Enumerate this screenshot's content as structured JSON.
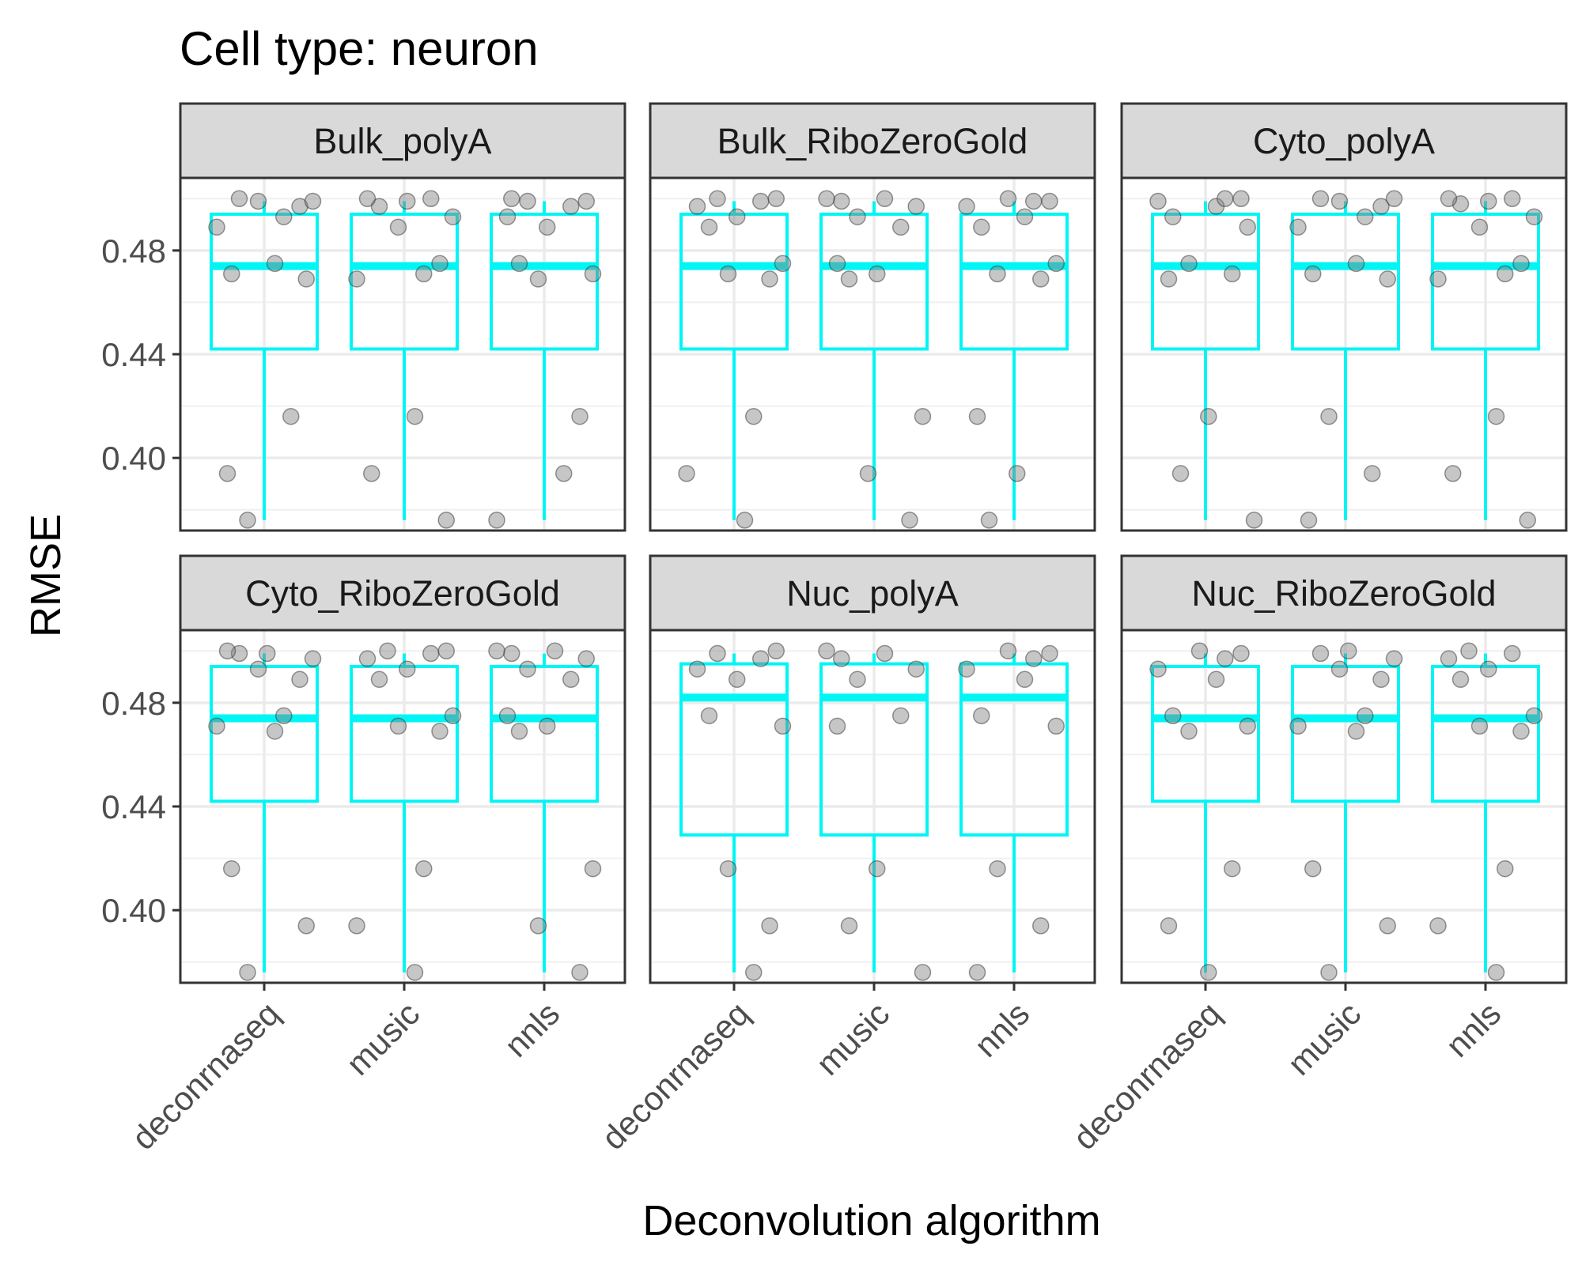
{
  "chart_data": {
    "type": "box",
    "title": "Cell type: neuron",
    "xlabel": "Deconvolution algorithm",
    "ylabel": "RMSE",
    "ylim": [
      0.372,
      0.508
    ],
    "y_ticks": [
      "0.40",
      "0.44",
      "0.48"
    ],
    "y_tick_values": [
      0.4,
      0.44,
      0.48
    ],
    "categories": [
      "deconrnaseq",
      "music",
      "nnls"
    ],
    "box_color": "#00f5f5",
    "point_color": "#808080",
    "panels": [
      {
        "name": "Bulk_polyA",
        "boxes": [
          {
            "category": "deconrnaseq",
            "q1": 0.442,
            "median": 0.474,
            "q3": 0.494,
            "whisker_low": 0.376,
            "whisker_high": 0.499
          },
          {
            "category": "music",
            "q1": 0.442,
            "median": 0.474,
            "q3": 0.494,
            "whisker_low": 0.376,
            "whisker_high": 0.499
          },
          {
            "category": "nnls",
            "q1": 0.442,
            "median": 0.474,
            "q3": 0.494,
            "whisker_low": 0.376,
            "whisker_high": 0.499
          }
        ],
        "points": [
          {
            "category": "deconrnaseq",
            "y": [
              0.394,
              0.416,
              0.376,
              0.469,
              0.471,
              0.475,
              0.489,
              0.493,
              0.497,
              0.499,
              0.499,
              0.5
            ]
          },
          {
            "category": "music",
            "y": [
              0.376,
              0.394,
              0.416,
              0.469,
              0.471,
              0.475,
              0.489,
              0.493,
              0.497,
              0.499,
              0.5,
              0.5
            ]
          },
          {
            "category": "nnls",
            "y": [
              0.376,
              0.394,
              0.416,
              0.469,
              0.471,
              0.475,
              0.489,
              0.493,
              0.497,
              0.499,
              0.499,
              0.5
            ]
          }
        ]
      },
      {
        "name": "Bulk_RiboZeroGold",
        "boxes": [
          {
            "category": "deconrnaseq",
            "q1": 0.442,
            "median": 0.474,
            "q3": 0.494,
            "whisker_low": 0.376,
            "whisker_high": 0.499
          },
          {
            "category": "music",
            "q1": 0.442,
            "median": 0.474,
            "q3": 0.494,
            "whisker_low": 0.376,
            "whisker_high": 0.499
          },
          {
            "category": "nnls",
            "q1": 0.442,
            "median": 0.474,
            "q3": 0.494,
            "whisker_low": 0.376,
            "whisker_high": 0.499
          }
        ],
        "points": [
          {
            "category": "deconrnaseq",
            "y": [
              0.376,
              0.394,
              0.416,
              0.469,
              0.471,
              0.475,
              0.489,
              0.493,
              0.497,
              0.499,
              0.5,
              0.5
            ]
          },
          {
            "category": "music",
            "y": [
              0.376,
              0.394,
              0.416,
              0.469,
              0.471,
              0.475,
              0.489,
              0.493,
              0.497,
              0.499,
              0.5,
              0.5
            ]
          },
          {
            "category": "nnls",
            "y": [
              0.376,
              0.394,
              0.416,
              0.469,
              0.471,
              0.475,
              0.489,
              0.493,
              0.497,
              0.499,
              0.499,
              0.5
            ]
          }
        ]
      },
      {
        "name": "Cyto_polyA",
        "boxes": [
          {
            "category": "deconrnaseq",
            "q1": 0.442,
            "median": 0.474,
            "q3": 0.494,
            "whisker_low": 0.376,
            "whisker_high": 0.499
          },
          {
            "category": "music",
            "q1": 0.442,
            "median": 0.474,
            "q3": 0.494,
            "whisker_low": 0.376,
            "whisker_high": 0.499
          },
          {
            "category": "nnls",
            "q1": 0.442,
            "median": 0.474,
            "q3": 0.494,
            "whisker_low": 0.376,
            "whisker_high": 0.499
          }
        ],
        "points": [
          {
            "category": "deconrnaseq",
            "y": [
              0.376,
              0.394,
              0.416,
              0.469,
              0.471,
              0.475,
              0.489,
              0.493,
              0.497,
              0.499,
              0.5,
              0.5
            ]
          },
          {
            "category": "music",
            "y": [
              0.376,
              0.394,
              0.416,
              0.469,
              0.471,
              0.475,
              0.489,
              0.493,
              0.497,
              0.499,
              0.5,
              0.5
            ]
          },
          {
            "category": "nnls",
            "y": [
              0.376,
              0.394,
              0.416,
              0.469,
              0.471,
              0.475,
              0.489,
              0.493,
              0.498,
              0.499,
              0.5,
              0.5
            ]
          }
        ]
      },
      {
        "name": "Cyto_RiboZeroGold",
        "boxes": [
          {
            "category": "deconrnaseq",
            "q1": 0.442,
            "median": 0.474,
            "q3": 0.494,
            "whisker_low": 0.376,
            "whisker_high": 0.499
          },
          {
            "category": "music",
            "q1": 0.442,
            "median": 0.474,
            "q3": 0.494,
            "whisker_low": 0.376,
            "whisker_high": 0.499
          },
          {
            "category": "nnls",
            "q1": 0.442,
            "median": 0.474,
            "q3": 0.494,
            "whisker_low": 0.376,
            "whisker_high": 0.499
          }
        ],
        "points": [
          {
            "category": "deconrnaseq",
            "y": [
              0.376,
              0.394,
              0.416,
              0.469,
              0.471,
              0.475,
              0.489,
              0.493,
              0.497,
              0.499,
              0.499,
              0.5
            ]
          },
          {
            "category": "music",
            "y": [
              0.376,
              0.394,
              0.416,
              0.469,
              0.471,
              0.475,
              0.489,
              0.493,
              0.497,
              0.499,
              0.5,
              0.5
            ]
          },
          {
            "category": "nnls",
            "y": [
              0.376,
              0.394,
              0.416,
              0.469,
              0.471,
              0.475,
              0.489,
              0.493,
              0.497,
              0.499,
              0.5,
              0.5
            ]
          }
        ]
      },
      {
        "name": "Nuc_polyA",
        "boxes": [
          {
            "category": "deconrnaseq",
            "q1": 0.429,
            "median": 0.482,
            "q3": 0.495,
            "whisker_low": 0.376,
            "whisker_high": 0.499
          },
          {
            "category": "music",
            "q1": 0.429,
            "median": 0.482,
            "q3": 0.495,
            "whisker_low": 0.376,
            "whisker_high": 0.499
          },
          {
            "category": "nnls",
            "q1": 0.429,
            "median": 0.482,
            "q3": 0.495,
            "whisker_low": 0.376,
            "whisker_high": 0.499
          }
        ],
        "points": [
          {
            "category": "deconrnaseq",
            "y": [
              0.376,
              0.394,
              0.416,
              0.471,
              0.475,
              0.489,
              0.493,
              0.497,
              0.499,
              0.5
            ]
          },
          {
            "category": "music",
            "y": [
              0.376,
              0.394,
              0.416,
              0.471,
              0.475,
              0.489,
              0.493,
              0.497,
              0.499,
              0.5
            ]
          },
          {
            "category": "nnls",
            "y": [
              0.376,
              0.394,
              0.416,
              0.471,
              0.475,
              0.489,
              0.493,
              0.497,
              0.499,
              0.5
            ]
          }
        ]
      },
      {
        "name": "Nuc_RiboZeroGold",
        "boxes": [
          {
            "category": "deconrnaseq",
            "q1": 0.442,
            "median": 0.474,
            "q3": 0.494,
            "whisker_low": 0.376,
            "whisker_high": 0.499
          },
          {
            "category": "music",
            "q1": 0.442,
            "median": 0.474,
            "q3": 0.494,
            "whisker_low": 0.376,
            "whisker_high": 0.499
          },
          {
            "category": "nnls",
            "q1": 0.442,
            "median": 0.474,
            "q3": 0.494,
            "whisker_low": 0.376,
            "whisker_high": 0.499
          }
        ],
        "points": [
          {
            "category": "deconrnaseq",
            "y": [
              0.376,
              0.394,
              0.416,
              0.469,
              0.471,
              0.475,
              0.489,
              0.493,
              0.497,
              0.499,
              0.5
            ]
          },
          {
            "category": "music",
            "y": [
              0.376,
              0.394,
              0.416,
              0.469,
              0.471,
              0.475,
              0.489,
              0.493,
              0.497,
              0.499,
              0.5
            ]
          },
          {
            "category": "nnls",
            "y": [
              0.376,
              0.394,
              0.416,
              0.469,
              0.471,
              0.475,
              0.489,
              0.493,
              0.497,
              0.499,
              0.5
            ]
          }
        ]
      }
    ]
  }
}
